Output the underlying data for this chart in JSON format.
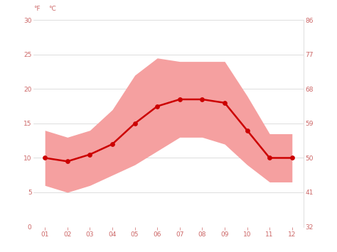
{
  "months": [
    1,
    2,
    3,
    4,
    5,
    6,
    7,
    8,
    9,
    10,
    11,
    12
  ],
  "month_labels": [
    "01",
    "02",
    "03",
    "04",
    "05",
    "06",
    "07",
    "08",
    "09",
    "10",
    "11",
    "12"
  ],
  "avg_temp": [
    10,
    9.5,
    10.5,
    12,
    15,
    17.5,
    18.5,
    18.5,
    18,
    14,
    10,
    10
  ],
  "temp_max": [
    14,
    13,
    14,
    17,
    22,
    24.5,
    24,
    24,
    24,
    19,
    13.5,
    13.5
  ],
  "temp_min": [
    6,
    5,
    6,
    7.5,
    9,
    11,
    13,
    13,
    12,
    9,
    6.5,
    6.5
  ],
  "line_color": "#cc0000",
  "fill_color": "#f5a0a0",
  "background_color": "#ffffff",
  "grid_color": "#d0d0d0",
  "tick_color": "#cc6666",
  "ylim": [
    0,
    30
  ],
  "yticks_c": [
    0,
    5,
    10,
    15,
    20,
    25,
    30
  ],
  "yticks_f": [
    32,
    41,
    50,
    59,
    68,
    77,
    86
  ],
  "figsize": [
    4.74,
    3.55
  ],
  "dpi": 100
}
